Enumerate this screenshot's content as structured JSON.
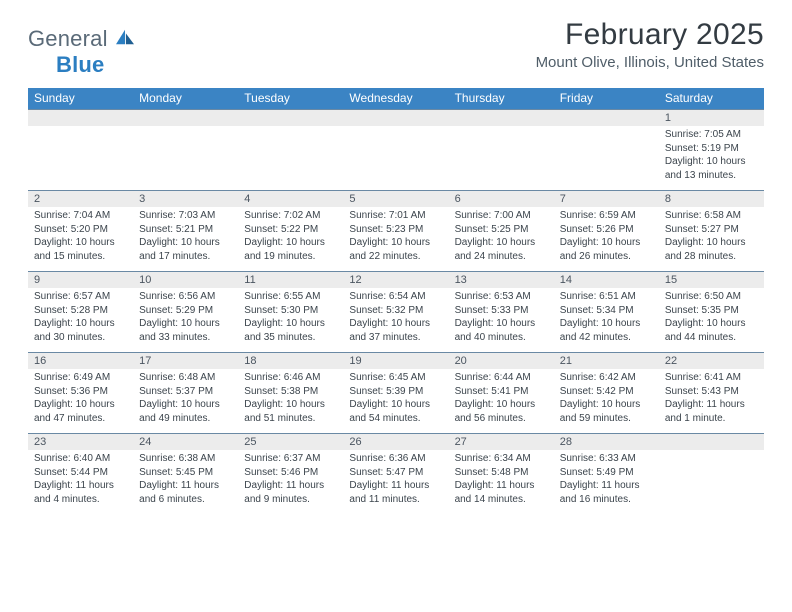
{
  "logo": {
    "word1": "General",
    "word2": "Blue"
  },
  "title": "February 2025",
  "location": "Mount Olive, Illinois, United States",
  "colors": {
    "header_bg": "#3b84c4",
    "header_text": "#ffffff",
    "strip_bg": "#ececec",
    "strip_border": "#6a89a4",
    "body_text": "#3b444c",
    "logo_gray": "#5a6a78",
    "logo_blue": "#2b7ec1"
  },
  "day_headers": [
    "Sunday",
    "Monday",
    "Tuesday",
    "Wednesday",
    "Thursday",
    "Friday",
    "Saturday"
  ],
  "weeks": [
    [
      null,
      null,
      null,
      null,
      null,
      null,
      {
        "n": "1",
        "sr": "Sunrise: 7:05 AM",
        "ss": "Sunset: 5:19 PM",
        "dl1": "Daylight: 10 hours",
        "dl2": "and 13 minutes."
      }
    ],
    [
      {
        "n": "2",
        "sr": "Sunrise: 7:04 AM",
        "ss": "Sunset: 5:20 PM",
        "dl1": "Daylight: 10 hours",
        "dl2": "and 15 minutes."
      },
      {
        "n": "3",
        "sr": "Sunrise: 7:03 AM",
        "ss": "Sunset: 5:21 PM",
        "dl1": "Daylight: 10 hours",
        "dl2": "and 17 minutes."
      },
      {
        "n": "4",
        "sr": "Sunrise: 7:02 AM",
        "ss": "Sunset: 5:22 PM",
        "dl1": "Daylight: 10 hours",
        "dl2": "and 19 minutes."
      },
      {
        "n": "5",
        "sr": "Sunrise: 7:01 AM",
        "ss": "Sunset: 5:23 PM",
        "dl1": "Daylight: 10 hours",
        "dl2": "and 22 minutes."
      },
      {
        "n": "6",
        "sr": "Sunrise: 7:00 AM",
        "ss": "Sunset: 5:25 PM",
        "dl1": "Daylight: 10 hours",
        "dl2": "and 24 minutes."
      },
      {
        "n": "7",
        "sr": "Sunrise: 6:59 AM",
        "ss": "Sunset: 5:26 PM",
        "dl1": "Daylight: 10 hours",
        "dl2": "and 26 minutes."
      },
      {
        "n": "8",
        "sr": "Sunrise: 6:58 AM",
        "ss": "Sunset: 5:27 PM",
        "dl1": "Daylight: 10 hours",
        "dl2": "and 28 minutes."
      }
    ],
    [
      {
        "n": "9",
        "sr": "Sunrise: 6:57 AM",
        "ss": "Sunset: 5:28 PM",
        "dl1": "Daylight: 10 hours",
        "dl2": "and 30 minutes."
      },
      {
        "n": "10",
        "sr": "Sunrise: 6:56 AM",
        "ss": "Sunset: 5:29 PM",
        "dl1": "Daylight: 10 hours",
        "dl2": "and 33 minutes."
      },
      {
        "n": "11",
        "sr": "Sunrise: 6:55 AM",
        "ss": "Sunset: 5:30 PM",
        "dl1": "Daylight: 10 hours",
        "dl2": "and 35 minutes."
      },
      {
        "n": "12",
        "sr": "Sunrise: 6:54 AM",
        "ss": "Sunset: 5:32 PM",
        "dl1": "Daylight: 10 hours",
        "dl2": "and 37 minutes."
      },
      {
        "n": "13",
        "sr": "Sunrise: 6:53 AM",
        "ss": "Sunset: 5:33 PM",
        "dl1": "Daylight: 10 hours",
        "dl2": "and 40 minutes."
      },
      {
        "n": "14",
        "sr": "Sunrise: 6:51 AM",
        "ss": "Sunset: 5:34 PM",
        "dl1": "Daylight: 10 hours",
        "dl2": "and 42 minutes."
      },
      {
        "n": "15",
        "sr": "Sunrise: 6:50 AM",
        "ss": "Sunset: 5:35 PM",
        "dl1": "Daylight: 10 hours",
        "dl2": "and 44 minutes."
      }
    ],
    [
      {
        "n": "16",
        "sr": "Sunrise: 6:49 AM",
        "ss": "Sunset: 5:36 PM",
        "dl1": "Daylight: 10 hours",
        "dl2": "and 47 minutes."
      },
      {
        "n": "17",
        "sr": "Sunrise: 6:48 AM",
        "ss": "Sunset: 5:37 PM",
        "dl1": "Daylight: 10 hours",
        "dl2": "and 49 minutes."
      },
      {
        "n": "18",
        "sr": "Sunrise: 6:46 AM",
        "ss": "Sunset: 5:38 PM",
        "dl1": "Daylight: 10 hours",
        "dl2": "and 51 minutes."
      },
      {
        "n": "19",
        "sr": "Sunrise: 6:45 AM",
        "ss": "Sunset: 5:39 PM",
        "dl1": "Daylight: 10 hours",
        "dl2": "and 54 minutes."
      },
      {
        "n": "20",
        "sr": "Sunrise: 6:44 AM",
        "ss": "Sunset: 5:41 PM",
        "dl1": "Daylight: 10 hours",
        "dl2": "and 56 minutes."
      },
      {
        "n": "21",
        "sr": "Sunrise: 6:42 AM",
        "ss": "Sunset: 5:42 PM",
        "dl1": "Daylight: 10 hours",
        "dl2": "and 59 minutes."
      },
      {
        "n": "22",
        "sr": "Sunrise: 6:41 AM",
        "ss": "Sunset: 5:43 PM",
        "dl1": "Daylight: 11 hours",
        "dl2": "and 1 minute."
      }
    ],
    [
      {
        "n": "23",
        "sr": "Sunrise: 6:40 AM",
        "ss": "Sunset: 5:44 PM",
        "dl1": "Daylight: 11 hours",
        "dl2": "and 4 minutes."
      },
      {
        "n": "24",
        "sr": "Sunrise: 6:38 AM",
        "ss": "Sunset: 5:45 PM",
        "dl1": "Daylight: 11 hours",
        "dl2": "and 6 minutes."
      },
      {
        "n": "25",
        "sr": "Sunrise: 6:37 AM",
        "ss": "Sunset: 5:46 PM",
        "dl1": "Daylight: 11 hours",
        "dl2": "and 9 minutes."
      },
      {
        "n": "26",
        "sr": "Sunrise: 6:36 AM",
        "ss": "Sunset: 5:47 PM",
        "dl1": "Daylight: 11 hours",
        "dl2": "and 11 minutes."
      },
      {
        "n": "27",
        "sr": "Sunrise: 6:34 AM",
        "ss": "Sunset: 5:48 PM",
        "dl1": "Daylight: 11 hours",
        "dl2": "and 14 minutes."
      },
      {
        "n": "28",
        "sr": "Sunrise: 6:33 AM",
        "ss": "Sunset: 5:49 PM",
        "dl1": "Daylight: 11 hours",
        "dl2": "and 16 minutes."
      },
      null
    ]
  ]
}
